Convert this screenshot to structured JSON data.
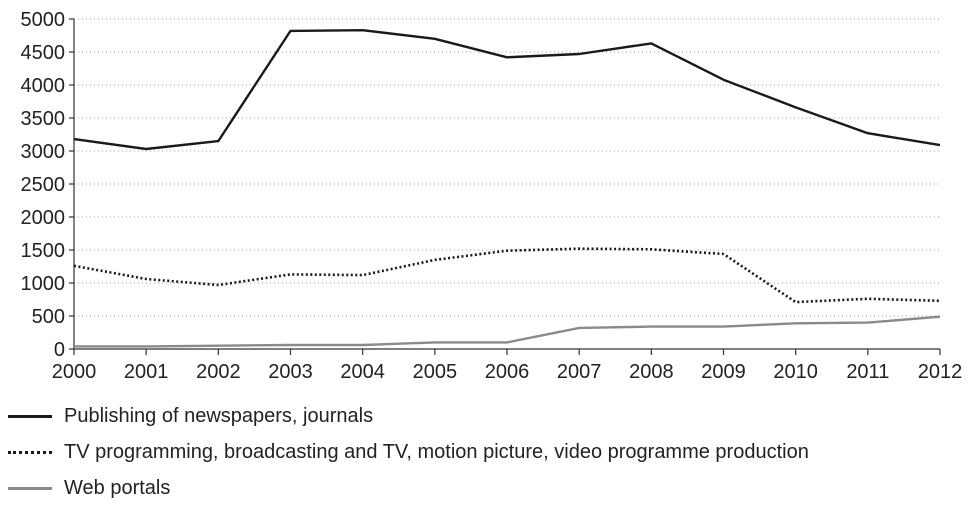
{
  "chart_data": {
    "type": "line",
    "title": "",
    "xlabel": "",
    "ylabel": "",
    "x": [
      "2000",
      "2001",
      "2002",
      "2003",
      "2004",
      "2005",
      "2006",
      "2007",
      "2008",
      "2009",
      "2010",
      "2011",
      "2012"
    ],
    "ylim": [
      0,
      5000
    ],
    "yticks": [
      0,
      500,
      1000,
      1500,
      2000,
      2500,
      3000,
      3500,
      4000,
      4500,
      5000
    ],
    "grid": "horizontal dotted",
    "legend_position": "bottom",
    "series": [
      {
        "name": "Publishing of newspapers, journals",
        "style": "solid",
        "color": "#1a1a1a",
        "values": [
          3180,
          3030,
          3150,
          4820,
          4830,
          4700,
          4420,
          4470,
          4630,
          4080,
          3660,
          3270,
          3090
        ]
      },
      {
        "name": "TV programming, broadcasting and TV, motion picture, video programme production",
        "style": "dotted",
        "color": "#1a1a1a",
        "values": [
          1260,
          1060,
          970,
          1130,
          1120,
          1350,
          1490,
          1520,
          1510,
          1440,
          710,
          760,
          730
        ]
      },
      {
        "name": "Web portals",
        "style": "solid",
        "color": "#8a8a8a",
        "values": [
          40,
          40,
          50,
          60,
          60,
          100,
          100,
          320,
          340,
          340,
          390,
          400,
          490
        ]
      }
    ]
  }
}
